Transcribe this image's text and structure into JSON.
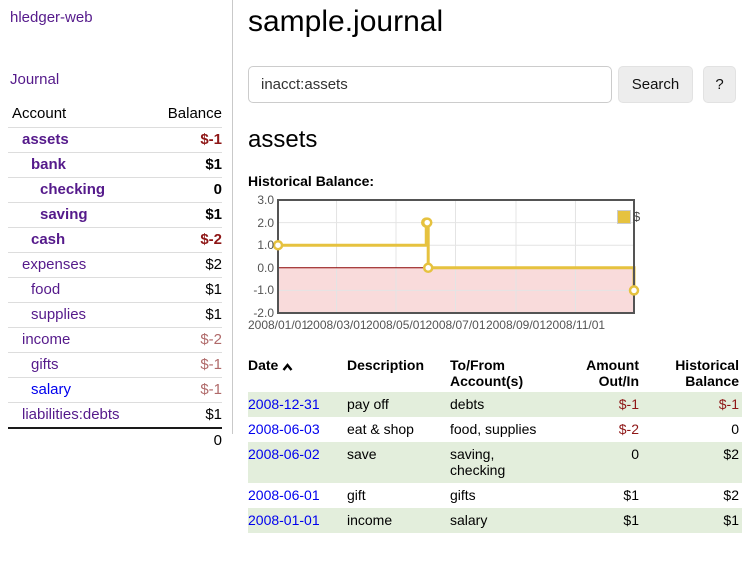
{
  "app": {
    "brand": "hledger-web"
  },
  "colors": {
    "link_purple": "#551A8B",
    "link_blue": "#0000EE",
    "negative_strong": "#8E1616",
    "negative_muted": "#B06A6A",
    "row_stripe_green": "#E3EEDC"
  },
  "sidebar": {
    "journal_link": "Journal",
    "headers": {
      "account": "Account",
      "balance": "Balance"
    },
    "accounts": [
      {
        "name": "assets",
        "balance": "$-1"
      },
      {
        "name": "bank",
        "balance": "$1"
      },
      {
        "name": "checking",
        "balance": "0"
      },
      {
        "name": "saving",
        "balance": "$1"
      },
      {
        "name": "cash",
        "balance": "$-2"
      },
      {
        "name": "expenses",
        "balance": "$2"
      },
      {
        "name": "food",
        "balance": "$1"
      },
      {
        "name": "supplies",
        "balance": "$1"
      },
      {
        "name": "income",
        "balance": "$-2"
      },
      {
        "name": "gifts",
        "balance": "$-1"
      },
      {
        "name": "salary",
        "balance": "$-1"
      },
      {
        "name": "liabilities:debts",
        "balance": "$1"
      }
    ],
    "total": "0"
  },
  "main": {
    "title": "sample.journal",
    "search": {
      "value": "inacct:assets",
      "clear_icon": "×",
      "button": "Search",
      "help_button": "?"
    },
    "account_heading": "assets",
    "chart_label": "Historical Balance:"
  },
  "chart_data": {
    "type": "line",
    "title": "Historical Balance:",
    "step": true,
    "legend": {
      "label": "$",
      "position": "top-right"
    },
    "ylim": [
      -2,
      3
    ],
    "y_ticks": [
      3,
      2,
      1,
      0,
      -1,
      -2
    ],
    "y_tick_labels": [
      "3.0",
      "2.0",
      "1.0",
      "0.0",
      "-1.0",
      "-2.0"
    ],
    "x_range_days": [
      0,
      365
    ],
    "x_ticks": {
      "days": [
        0,
        60,
        121,
        182,
        244,
        305
      ],
      "labels": [
        "2008/01/01",
        "2008/03/01",
        "2008/05/01",
        "2008/07/01",
        "2008/09/01",
        "2008/11/01"
      ]
    },
    "series": [
      {
        "name": "$",
        "points": [
          {
            "date": "2008-01-01",
            "day": 0,
            "value": 1
          },
          {
            "date": "2008-06-01",
            "day": 152,
            "value": 2
          },
          {
            "date": "2008-06-02",
            "day": 153,
            "value": 2
          },
          {
            "date": "2008-06-03",
            "day": 154,
            "value": 0
          },
          {
            "date": "2008-12-31",
            "day": 365,
            "value": -1
          }
        ]
      }
    ],
    "colors": {
      "line": "#E6C23F",
      "negative_region": "#F9DBDB",
      "zero_line": "#8B0000",
      "grid": "#e4e4e4",
      "border": "#545454"
    }
  },
  "register": {
    "headers": {
      "date": "Date",
      "description": "Description",
      "accounts": "To/From Account(s)",
      "amount": "Amount Out/In",
      "balance": "Historical Balance"
    },
    "rows": [
      {
        "date": "2008-12-31",
        "description": "pay off",
        "accounts": "debts",
        "amount": "$-1",
        "balance": "$-1"
      },
      {
        "date": "2008-06-03",
        "description": "eat & shop",
        "accounts": "food, supplies",
        "amount": "$-2",
        "balance": "0"
      },
      {
        "date": "2008-06-02",
        "description": "save",
        "accounts": "saving, checking",
        "amount": "0",
        "balance": "$2"
      },
      {
        "date": "2008-06-01",
        "description": "gift",
        "accounts": "gifts",
        "amount": "$1",
        "balance": "$2"
      },
      {
        "date": "2008-01-01",
        "description": "income",
        "accounts": "salary",
        "amount": "$1",
        "balance": "$1"
      }
    ]
  }
}
